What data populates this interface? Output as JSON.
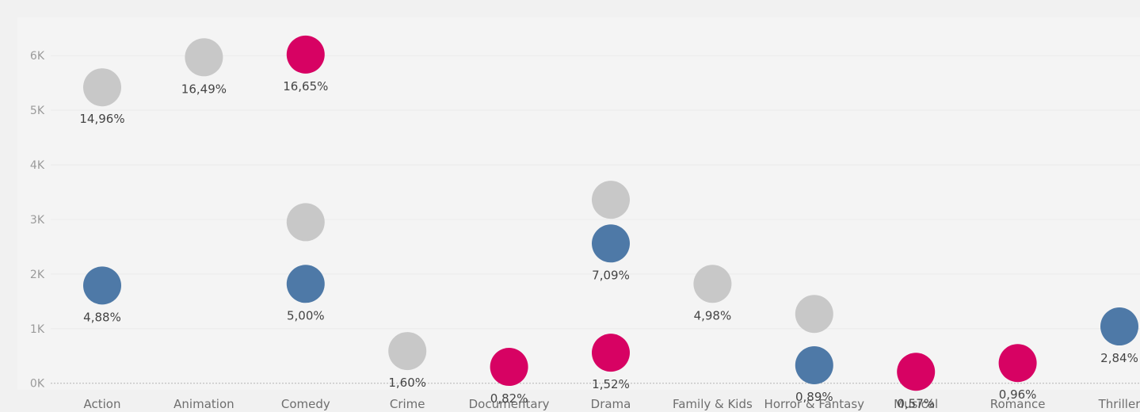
{
  "chart_data": {
    "type": "scatter",
    "title": "",
    "xlabel": "",
    "ylabel": "",
    "y_tick_labels": [
      "0K",
      "1K",
      "2K",
      "3K",
      "4K",
      "5K",
      "6K"
    ],
    "y_ticks": [
      0,
      1000,
      2000,
      3000,
      4000,
      5000,
      6000
    ],
    "ylim": [
      -120,
      6700
    ],
    "grid": true,
    "legend": "none",
    "categories": [
      "Action",
      "Animation",
      "Comedy",
      "Crime",
      "Documentary",
      "Drama",
      "Family & Kids",
      "Horror & Fantasy",
      "Musical",
      "Romance",
      "Thriller"
    ],
    "colors": {
      "gray": "#c8c8c8",
      "blue": "#4e79a7",
      "magenta": "#d70263"
    },
    "points": [
      {
        "category": "Action",
        "value": 5420,
        "color": "gray",
        "label": "14,96%"
      },
      {
        "category": "Action",
        "value": 1790,
        "color": "blue",
        "label": "4,88%"
      },
      {
        "category": "Animation",
        "value": 5970,
        "color": "gray",
        "label": "16,49%"
      },
      {
        "category": "Comedy",
        "value": 6020,
        "color": "magenta",
        "label": "16,65%"
      },
      {
        "category": "Comedy",
        "value": 2950,
        "color": "gray",
        "label": ""
      },
      {
        "category": "Comedy",
        "value": 1820,
        "color": "blue",
        "label": "5,00%"
      },
      {
        "category": "Crime",
        "value": 590,
        "color": "gray",
        "label": "1,60%"
      },
      {
        "category": "Documentary",
        "value": 300,
        "color": "magenta",
        "label": "0,82%"
      },
      {
        "category": "Drama",
        "value": 3360,
        "color": "gray",
        "label": ""
      },
      {
        "category": "Drama",
        "value": 2560,
        "color": "blue",
        "label": "7,09%"
      },
      {
        "category": "Drama",
        "value": 560,
        "color": "magenta",
        "label": "1,52%"
      },
      {
        "category": "Family & Kids",
        "value": 1820,
        "color": "gray",
        "label": "4,98%"
      },
      {
        "category": "Horror & Fantasy",
        "value": 1270,
        "color": "gray",
        "label": ""
      },
      {
        "category": "Horror & Fantasy",
        "value": 330,
        "color": "blue",
        "label": "0,89%"
      },
      {
        "category": "Musical",
        "value": 210,
        "color": "magenta",
        "label": "0,57%"
      },
      {
        "category": "Romance",
        "value": 370,
        "color": "magenta",
        "label": "0,96%"
      },
      {
        "category": "Thriller",
        "value": 1040,
        "color": "blue",
        "label": "2,84%"
      }
    ]
  }
}
